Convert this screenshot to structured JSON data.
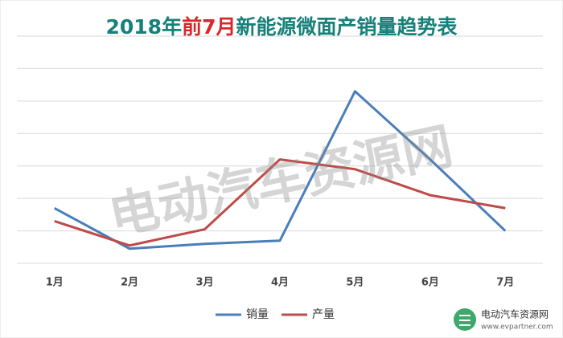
{
  "chart_data": {
    "type": "line",
    "title_parts": [
      "2018年",
      "前7月",
      "新能源微面产销量趋势表"
    ],
    "title_colors": [
      "#17807a",
      "#d9262b",
      "#17807a"
    ],
    "categories": [
      "1月",
      "2月",
      "3月",
      "4月",
      "5月",
      "6月",
      "7月"
    ],
    "series": [
      {
        "name": "销量",
        "color": "#4a7ebb",
        "values": [
          1.7,
          0.45,
          0.6,
          0.7,
          5.3,
          3.2,
          1.0
        ]
      },
      {
        "name": "产量",
        "color": "#be4b48",
        "values": [
          1.3,
          0.55,
          1.05,
          3.2,
          2.9,
          2.1,
          1.7
        ]
      }
    ],
    "ylim": [
      0,
      7
    ],
    "yticks": [
      0,
      1,
      2,
      3,
      4,
      5,
      6,
      7
    ],
    "grid": true,
    "watermark": "电动汽车资源网",
    "logo": {
      "name": "电动汽车资源网",
      "url": "www.evpartner.com"
    }
  }
}
